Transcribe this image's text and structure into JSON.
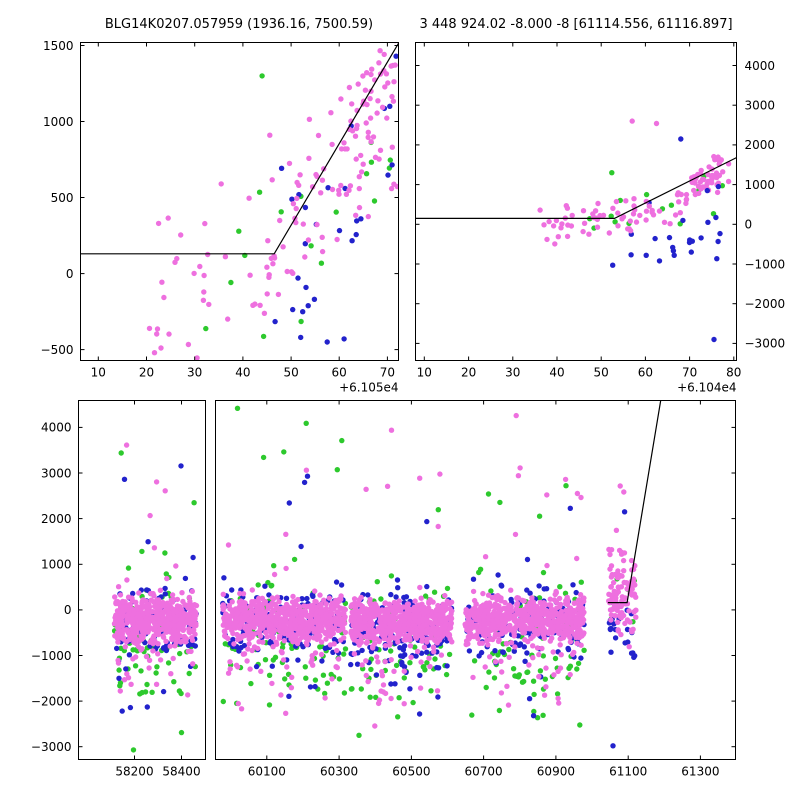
{
  "chart_data": {
    "type": "scatter",
    "background": "#FFFFFF",
    "colors": {
      "violet": "#EE70DF",
      "green": "#2DC92D",
      "blue": "#2222CC",
      "fit_line": "#000000",
      "axes": "#000000",
      "tick_text": "#000000"
    },
    "marker_radius": 2.7,
    "panels": [
      {
        "id": "top_left",
        "title": "BLG14K0207.057959 (1936.16, 7500.59)",
        "xlim": [
          6.3,
          72.3
        ],
        "ylim": [
          -572,
          1520
        ],
        "xticks": [
          10,
          20,
          30,
          40,
          50,
          60,
          70
        ],
        "xtick_labels": [
          "10",
          "20",
          "30",
          "40",
          "50",
          "60",
          "70"
        ],
        "x_offset_label": "+6.105e4",
        "yticks": [
          -500,
          0,
          500,
          1000,
          1500
        ],
        "ytick_labels": [
          "−500",
          "0",
          "500",
          "1000",
          "1500"
        ],
        "y_label_side": "left",
        "y_tick_sides": [
          "left",
          "right"
        ],
        "seed": 101,
        "fit_line": [
          [
            6.3,
            130
          ],
          [
            46.5,
            130
          ],
          [
            72.3,
            1515
          ]
        ],
        "clusters": [
          {
            "c": "green",
            "n": 18,
            "x": [
              34,
              72
            ],
            "trend": [
              34,
              -150,
              72,
              900
            ],
            "sd": 330
          },
          {
            "c": "blue",
            "n": 24,
            "x": [
              46,
              72.3
            ],
            "trend": [
              46,
              -60,
              72,
              640
            ],
            "sd": 340
          },
          {
            "c": "violet",
            "n": 30,
            "x": [
              20,
              47
            ],
            "trend": [
              20,
              -120,
              47,
              130
            ],
            "sd": 260
          },
          {
            "c": "violet",
            "n": 92,
            "x": [
              44,
              72.3
            ],
            "trend": [
              44,
              140,
              72,
              1130
            ],
            "sd": 300
          },
          {
            "c": "violet",
            "n": 25,
            "x": [
              62,
              72.3
            ],
            "trend": [
              62,
              1060,
              72,
              1260
            ],
            "sd": 170
          }
        ],
        "extra": [
          [
            23,
            -490,
            "violet"
          ],
          [
            30.5,
            -555,
            "violet"
          ],
          [
            22.5,
            330,
            "violet"
          ],
          [
            24.5,
            365,
            "violet"
          ],
          [
            35.5,
            590,
            "violet"
          ],
          [
            44,
            1300,
            "green"
          ],
          [
            32.3,
            -362,
            "green"
          ],
          [
            52,
            -420,
            "blue"
          ],
          [
            57.5,
            -450,
            "blue"
          ],
          [
            61,
            -430,
            "blue"
          ],
          [
            71.8,
            1430,
            "blue"
          ],
          [
            70.5,
            1100,
            "blue"
          ]
        ]
      },
      {
        "id": "top_right",
        "title": "3 448 924.02 -8.000 -8 [61114.556, 61116.897]",
        "xlim": [
          8,
          80.6
        ],
        "ylim": [
          -3430,
          4580
        ],
        "xticks": [
          10,
          20,
          30,
          40,
          50,
          60,
          70,
          80
        ],
        "xtick_labels": [
          "10",
          "20",
          "30",
          "40",
          "50",
          "60",
          "70",
          "80"
        ],
        "x_offset_label": "+6.104e4",
        "yticks": [
          -3000,
          -2000,
          -1000,
          0,
          1000,
          2000,
          3000,
          4000
        ],
        "ytick_labels": [
          "−3000",
          "−2000",
          "−1000",
          "0",
          "1000",
          "2000",
          "3000",
          "4000"
        ],
        "y_label_side": "right",
        "y_tick_sides": [
          "left",
          "right"
        ],
        "seed": 202,
        "fit_line": [
          [
            8,
            150
          ],
          [
            53,
            150
          ],
          [
            80.6,
            1680
          ]
        ],
        "clusters": [
          {
            "c": "green",
            "n": 15,
            "x": [
              44,
              78
            ],
            "trend": [
              44,
              -150,
              78,
              850
            ],
            "sd": 300
          },
          {
            "c": "blue",
            "n": 20,
            "x": [
              52,
              77
            ],
            "mean": -420,
            "sd": 340
          },
          {
            "c": "violet",
            "n": 68,
            "x": [
              36,
              71
            ],
            "trend": [
              36,
              -120,
              71,
              620
            ],
            "sd": 260
          },
          {
            "c": "violet",
            "n": 48,
            "x": [
              70,
              79
            ],
            "trend": [
              70,
              900,
              79,
              1500
            ],
            "sd": 200
          }
        ],
        "extra": [
          [
            57,
            2600,
            "violet"
          ],
          [
            62.5,
            2540,
            "violet"
          ],
          [
            52.4,
            1300,
            "green"
          ],
          [
            68,
            2150,
            "blue"
          ],
          [
            75.5,
            -2900,
            "blue"
          ],
          [
            52.6,
            -1030,
            "blue"
          ],
          [
            66.5,
            -780,
            "blue"
          ],
          [
            74,
            850,
            "blue"
          ],
          [
            76.5,
            950,
            "blue"
          ]
        ]
      },
      {
        "id": "bottom_left",
        "title": "",
        "xlim": [
          57962,
          58502
        ],
        "ylim": [
          -3280,
          4590
        ],
        "xticks": [
          58200,
          58400
        ],
        "xtick_labels": [
          "58200",
          "58400"
        ],
        "yticks": [
          -3000,
          -2000,
          -1000,
          0,
          1000,
          2000,
          3000,
          4000
        ],
        "ytick_labels": [
          "−3000",
          "−2000",
          "−1000",
          "0",
          "1000",
          "2000",
          "3000",
          "4000"
        ],
        "y_label_side": "left",
        "y_tick_sides": [
          "left"
        ],
        "seed": 303,
        "fit_line": [],
        "clusters": [
          {
            "c": "green",
            "n": 70,
            "x": [
              58115,
              58465
            ],
            "mean": -800,
            "sd": 650
          },
          {
            "c": "green",
            "n": 10,
            "x": [
              58125,
              58455
            ],
            "y": [
              -3150,
              3600
            ]
          },
          {
            "c": "blue",
            "n": 100,
            "x": [
              58115,
              58465
            ],
            "mean": -350,
            "sd": 400
          },
          {
            "c": "blue",
            "n": 12,
            "x": [
              58125,
              58455
            ],
            "y": [
              -2300,
              3350
            ]
          },
          {
            "c": "violet",
            "n": 500,
            "x": [
              58115,
              58465
            ],
            "mean": -200,
            "sd": 230
          },
          {
            "c": "violet",
            "n": 40,
            "x": [
              58130,
              58450
            ],
            "mean": -900,
            "sd": 500
          },
          {
            "c": "violet",
            "n": 14,
            "x": [
              58125,
              58455
            ],
            "y": [
              -2900,
              3870
            ]
          }
        ],
        "extra": []
      },
      {
        "id": "bottom_right",
        "title": "",
        "xlim": [
          59958,
          61397
        ],
        "ylim": [
          -3280,
          4590
        ],
        "xticks": [
          60100,
          60300,
          60500,
          60700,
          60900,
          61100,
          61300
        ],
        "xtick_labels": [
          "60100",
          "60300",
          "60500",
          "60700",
          "60900",
          "61100",
          "61300"
        ],
        "yticks": [
          -3000,
          -2000,
          -1000,
          0,
          1000,
          2000,
          3000,
          4000
        ],
        "ytick_labels": [],
        "y_label_side": null,
        "y_tick_sides": [
          "right"
        ],
        "seed": 404,
        "fit_line": [
          [
            61044,
            160
          ],
          [
            61097,
            160
          ],
          [
            61190,
            4590
          ]
        ],
        "clusters": [
          {
            "c": "green",
            "n": 80,
            "x": [
              59978,
              60318
            ],
            "mean": -750,
            "sd": 650
          },
          {
            "c": "green",
            "n": 12,
            "x": [
              59990,
              60310
            ],
            "y": [
              -2650,
              4430
            ]
          },
          {
            "c": "green",
            "n": 70,
            "x": [
              60332,
              60612
            ],
            "mean": -800,
            "sd": 650
          },
          {
            "c": "green",
            "n": 10,
            "x": [
              60340,
              60605
            ],
            "y": [
              -2900,
              2600
            ]
          },
          {
            "c": "green",
            "n": 80,
            "x": [
              60648,
              60978
            ],
            "mean": -750,
            "sd": 650
          },
          {
            "c": "green",
            "n": 12,
            "x": [
              60655,
              60970
            ],
            "y": [
              -2900,
              3530
            ]
          },
          {
            "c": "green",
            "n": 5,
            "x": [
              61046,
              61122
            ],
            "y": [
              -900,
              700
            ]
          },
          {
            "c": "blue",
            "n": 125,
            "x": [
              59978,
              60318
            ],
            "mean": -350,
            "sd": 400
          },
          {
            "c": "blue",
            "n": 10,
            "x": [
              59990,
              60310
            ],
            "y": [
              -2100,
              3300
            ]
          },
          {
            "c": "blue",
            "n": 135,
            "x": [
              60332,
              60612
            ],
            "mean": -500,
            "sd": 430
          },
          {
            "c": "blue",
            "n": 8,
            "x": [
              60340,
              60605
            ],
            "y": [
              -2450,
              2250
            ]
          },
          {
            "c": "blue",
            "n": 125,
            "x": [
              60648,
              60978
            ],
            "mean": -400,
            "sd": 410
          },
          {
            "c": "blue",
            "n": 10,
            "x": [
              60655,
              60970
            ],
            "y": [
              -2350,
              3000
            ]
          },
          {
            "c": "blue",
            "n": 22,
            "x": [
              61046,
              61122
            ],
            "mean": -450,
            "sd": 430
          },
          {
            "c": "violet",
            "n": 620,
            "x": [
              59978,
              60318
            ],
            "mean": -220,
            "sd": 240
          },
          {
            "c": "violet",
            "n": 45,
            "x": [
              59990,
              60310
            ],
            "mean": -950,
            "sd": 500
          },
          {
            "c": "violet",
            "n": 12,
            "x": [
              59990,
              60310
            ],
            "y": [
              -2500,
              3100
            ]
          },
          {
            "c": "violet",
            "n": 580,
            "x": [
              60332,
              60612
            ],
            "mean": -250,
            "sd": 240
          },
          {
            "c": "violet",
            "n": 45,
            "x": [
              60340,
              60605
            ],
            "mean": -1000,
            "sd": 500
          },
          {
            "c": "violet",
            "n": 10,
            "x": [
              60340,
              60605
            ],
            "y": [
              -2950,
              3940
            ]
          },
          {
            "c": "violet",
            "n": 620,
            "x": [
              60648,
              60978
            ],
            "mean": -200,
            "sd": 245
          },
          {
            "c": "violet",
            "n": 45,
            "x": [
              60655,
              60970
            ],
            "mean": -950,
            "sd": 500
          },
          {
            "c": "violet",
            "n": 14,
            "x": [
              60655,
              60970
            ],
            "y": [
              -2400,
              4270
            ]
          },
          {
            "c": "violet",
            "n": 105,
            "x": [
              61046,
              61122
            ],
            "mean": 350,
            "sd": 500
          }
        ],
        "extra": [
          [
            61078,
            2715,
            "violet"
          ],
          [
            61088,
            2585,
            "violet"
          ],
          [
            61090,
            2150,
            "blue"
          ],
          [
            61058,
            -2980,
            "blue"
          ],
          [
            60019,
            4420,
            "green"
          ],
          [
            60209,
            4090,
            "green"
          ],
          [
            60445,
            3940,
            "violet"
          ],
          [
            60790,
            4260,
            "violet"
          ]
        ]
      }
    ]
  }
}
